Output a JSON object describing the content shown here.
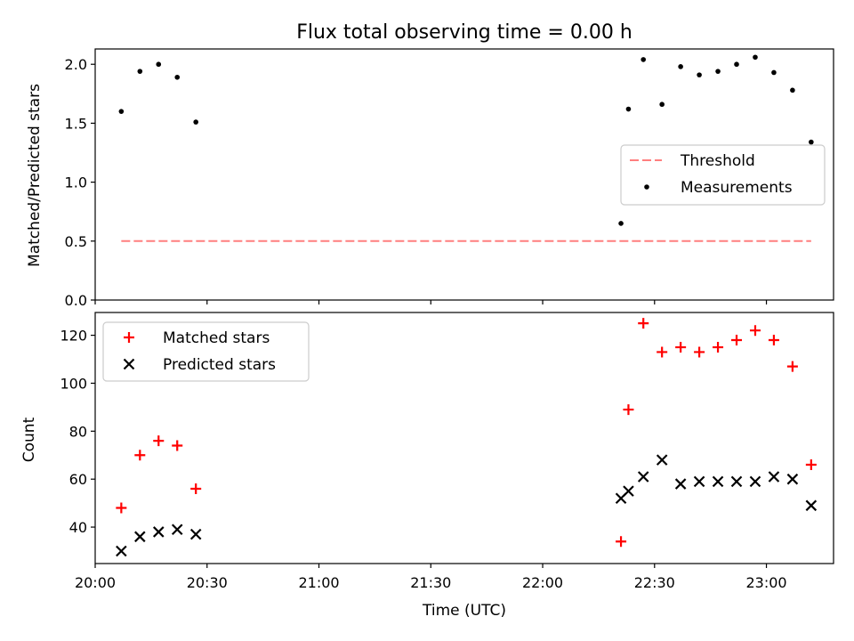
{
  "chart_data": [
    {
      "type": "scatter",
      "title": "Flux total observing time = 0.00 h",
      "ylabel": "Matched/Predicted stars",
      "xlabel": "",
      "xlim": [
        "20:00",
        "23:18"
      ],
      "ylim": [
        0,
        2.13
      ],
      "yticks": [
        0.0,
        0.5,
        1.0,
        1.5,
        2.0
      ],
      "ytick_labels": [
        "0.0",
        "0.5",
        "1.0",
        "1.5",
        "2.0"
      ],
      "legend": {
        "position": "center-right",
        "entries": [
          "Threshold",
          "Measurements"
        ]
      },
      "threshold": {
        "name": "Threshold",
        "value": 0.5,
        "x_start": "20:07",
        "x_end": "23:12",
        "color": "#ff7f7f",
        "style": "dashed"
      },
      "series": [
        {
          "name": "Measurements",
          "color": "#000000",
          "marker": "dot",
          "points": [
            [
              "20:07",
              1.6
            ],
            [
              "20:12",
              1.94
            ],
            [
              "20:17",
              2.0
            ],
            [
              "20:22",
              1.89
            ],
            [
              "20:27",
              1.51
            ],
            [
              "22:21",
              0.65
            ],
            [
              "22:23",
              1.62
            ],
            [
              "22:27",
              2.04
            ],
            [
              "22:32",
              1.66
            ],
            [
              "22:37",
              1.98
            ],
            [
              "22:42",
              1.91
            ],
            [
              "22:47",
              1.94
            ],
            [
              "22:52",
              2.0
            ],
            [
              "22:57",
              2.06
            ],
            [
              "23:02",
              1.93
            ],
            [
              "23:07",
              1.78
            ],
            [
              "23:12",
              1.34
            ]
          ]
        }
      ]
    },
    {
      "type": "scatter",
      "title": "",
      "ylabel": "Count",
      "xlabel": "Time (UTC)",
      "xlim": [
        "20:00",
        "23:18"
      ],
      "ylim": [
        24.8,
        129.5
      ],
      "yticks": [
        40,
        60,
        80,
        100,
        120
      ],
      "ytick_labels": [
        "40",
        "60",
        "80",
        "100",
        "120"
      ],
      "xticks": [
        "20:00",
        "20:30",
        "21:00",
        "21:30",
        "22:00",
        "22:30",
        "23:00"
      ],
      "xtick_labels": [
        "20:00",
        "20:30",
        "21:00",
        "21:30",
        "22:00",
        "22:30",
        "23:00"
      ],
      "legend": {
        "position": "upper-left",
        "entries": [
          "Matched stars",
          "Predicted stars"
        ]
      },
      "series": [
        {
          "name": "Matched stars",
          "color": "#ff0000",
          "marker": "plus",
          "points": [
            [
              "20:07",
              48
            ],
            [
              "20:12",
              70
            ],
            [
              "20:17",
              76
            ],
            [
              "20:22",
              74
            ],
            [
              "20:27",
              56
            ],
            [
              "22:21",
              34
            ],
            [
              "22:23",
              89
            ],
            [
              "22:27",
              125
            ],
            [
              "22:32",
              113
            ],
            [
              "22:37",
              115
            ],
            [
              "22:42",
              113
            ],
            [
              "22:47",
              115
            ],
            [
              "22:52",
              118
            ],
            [
              "22:57",
              122
            ],
            [
              "23:02",
              118
            ],
            [
              "23:07",
              107
            ],
            [
              "23:12",
              66
            ]
          ]
        },
        {
          "name": "Predicted stars",
          "color": "#000000",
          "marker": "x",
          "points": [
            [
              "20:07",
              30
            ],
            [
              "20:12",
              36
            ],
            [
              "20:17",
              38
            ],
            [
              "20:22",
              39
            ],
            [
              "20:27",
              37
            ],
            [
              "22:21",
              52
            ],
            [
              "22:23",
              55
            ],
            [
              "22:27",
              61
            ],
            [
              "22:32",
              68
            ],
            [
              "22:37",
              58
            ],
            [
              "22:42",
              59
            ],
            [
              "22:47",
              59
            ],
            [
              "22:52",
              59
            ],
            [
              "22:57",
              59
            ],
            [
              "23:02",
              61
            ],
            [
              "23:07",
              60
            ],
            [
              "23:12",
              49
            ]
          ]
        }
      ]
    }
  ]
}
